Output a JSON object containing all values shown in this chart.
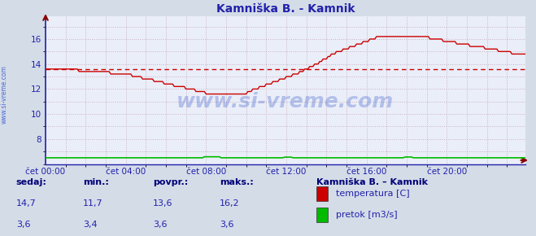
{
  "title": "Kamniška B. - Kamnik",
  "bg_color": "#d4dce8",
  "plot_bg_color": "#eaeef8",
  "grid_color": "#c8b0c0",
  "grid_style": ":",
  "tick_color": "#2222aa",
  "ylabel_left_ticks": [
    8,
    10,
    12,
    14,
    16
  ],
  "ylim": [
    6.0,
    17.8
  ],
  "xlim": [
    0,
    287
  ],
  "xtick_positions": [
    0,
    48,
    96,
    144,
    192,
    240
  ],
  "xtick_labels": [
    "čet 00:00",
    "čet 04:00",
    "čet 08:00",
    "čet 12:00",
    "čet 16:00",
    "čet 20:00"
  ],
  "temp_color": "#cc0000",
  "flow_color": "#00bb00",
  "avg_line_color": "#cc0000",
  "avg_line_style": "--",
  "avg_value": 13.6,
  "watermark": "www.si-vreme.com",
  "watermark_color": "#3355cc",
  "watermark_alpha": 0.3,
  "sidebar_text": "www.si-vreme.com",
  "sidebar_color": "#3355cc",
  "legend_title": "Kamniška B. – Kamnik",
  "legend_title_color": "#000077",
  "legend_items": [
    {
      "label": "temperatura [C]",
      "color": "#cc0000"
    },
    {
      "label": "pretok [m3/s]",
      "color": "#00bb00"
    }
  ],
  "stats_labels": [
    "sedaj:",
    "min.:",
    "povpr.:",
    "maks.:"
  ],
  "stats_temp": [
    "14,7",
    "11,7",
    "13,6",
    "16,2"
  ],
  "stats_flow": [
    "3,6",
    "3,4",
    "3,6",
    "3,6"
  ],
  "stats_color": "#2222aa",
  "stats_label_color": "#000077",
  "title_color": "#2222aa",
  "title_fontsize": 10,
  "flow_y_position": 6.5,
  "left_spine_color": "#2222aa",
  "bottom_spine_color": "#880000"
}
